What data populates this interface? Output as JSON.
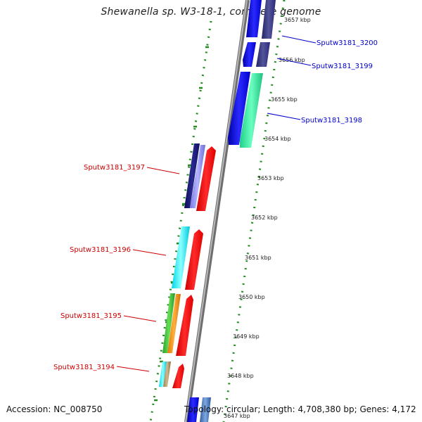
{
  "title": "Shewanella sp. W3-18-1, complete genome",
  "footer": {
    "accession": "Accession: NC_008750",
    "summary": "Topology: circular; Length: 4,708,380 bp; Genes: 4,172"
  },
  "colors": {
    "forward_label": "#0000cc",
    "reverse_label": "#cc0000",
    "backbone": "#8a8a8a",
    "tick_dots": "#228b22"
  },
  "scale_ticks": [
    {
      "label": "3657 kbp"
    },
    {
      "label": "3656 kbp"
    },
    {
      "label": "3655 kbp"
    },
    {
      "label": "3654 kbp"
    },
    {
      "label": "3653 kbp"
    },
    {
      "label": "3652 kbp"
    },
    {
      "label": "3651 kbp"
    },
    {
      "label": "3650 kbp"
    },
    {
      "label": "3649 kbp"
    },
    {
      "label": "3648 kbp"
    },
    {
      "label": "3647 kbp"
    }
  ],
  "genes": [
    {
      "name": "Sputw3181_3200",
      "strand": "forward"
    },
    {
      "name": "Sputw3181_3199",
      "strand": "forward"
    },
    {
      "name": "Sputw3181_3198",
      "strand": "forward"
    },
    {
      "name": "Sputw3181_3197",
      "strand": "reverse"
    },
    {
      "name": "Sputw3181_3196",
      "strand": "reverse"
    },
    {
      "name": "Sputw3181_3195",
      "strand": "reverse"
    },
    {
      "name": "Sputw3181_3194",
      "strand": "reverse"
    }
  ]
}
